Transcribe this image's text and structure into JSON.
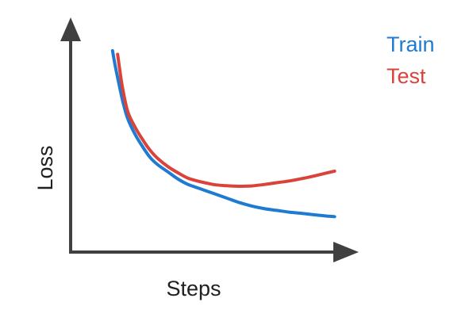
{
  "chart_data": {
    "type": "line",
    "xlabel": "Steps",
    "ylabel": "Loss",
    "x_ticks": "none",
    "y_ticks": "none",
    "grid": false,
    "legend_placement": "top-right",
    "xlim": [
      0,
      100
    ],
    "ylim": [
      0,
      100
    ],
    "series": [
      {
        "name": "Train",
        "color": "#1f7bd1",
        "x": [
          10,
          11,
          12,
          14,
          16,
          19,
          22,
          25,
          28,
          32,
          36,
          40,
          45,
          50,
          55,
          60,
          65,
          70,
          75,
          80,
          85,
          90,
          95,
          98
        ],
        "y": [
          96,
          88,
          81,
          68,
          58,
          49,
          42,
          36,
          32,
          28,
          24,
          21,
          18.5,
          16,
          13.5,
          11,
          9,
          7.5,
          6.5,
          5.5,
          4.8,
          4,
          3.3,
          3
        ]
      },
      {
        "name": "Test",
        "color": "#d9433a",
        "x": [
          12,
          13,
          14,
          16,
          19,
          22,
          25,
          28,
          32,
          36,
          40,
          45,
          50,
          55,
          60,
          65,
          70,
          75,
          80,
          85,
          90,
          95,
          98
        ],
        "y": [
          94,
          84,
          75,
          62,
          53,
          46,
          40,
          35.5,
          31,
          27.5,
          24.5,
          22.5,
          21,
          20.3,
          20,
          20.2,
          21,
          22,
          23,
          24.3,
          25.8,
          27.5,
          28.5
        ]
      }
    ]
  }
}
